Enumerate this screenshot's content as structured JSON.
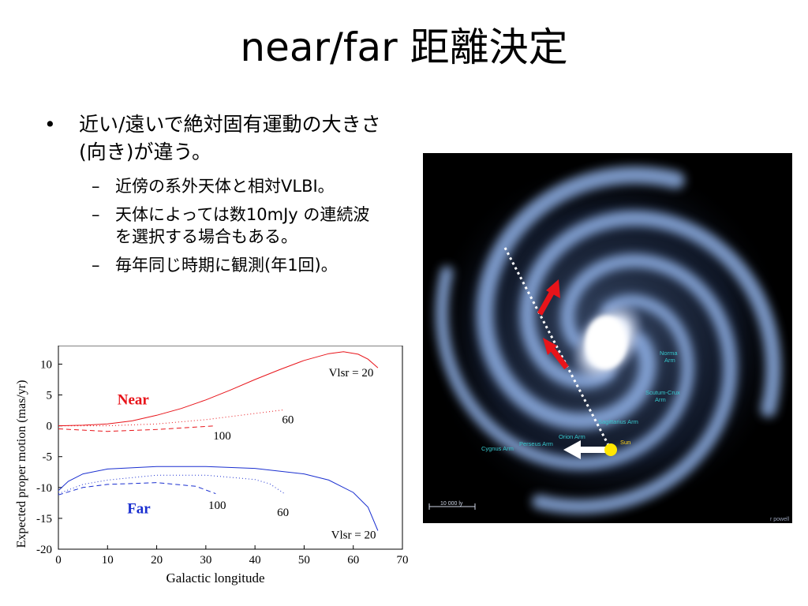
{
  "slide": {
    "title": "near/far 距離決定",
    "bullet_main": "近い/遠いで絶対固有運動の大きさ(向き)が違う。",
    "sub_bullets": [
      "近傍の系外天体と相対VLBI。",
      "天体によっては数10mJy の連続波を選択する場合もある。",
      "毎年同じ時期に観測(年1回)。"
    ],
    "bullet_symbol": "•",
    "dash_symbol": "–"
  },
  "galaxy": {
    "labels": {
      "norma": "Norma Arm",
      "scutum": "Scutum-Crux Arm",
      "sagittarius": "Sagittarius Arm",
      "orion": "Orion Arm",
      "perseus": "Perseus Arm",
      "cygnus": "Cygnus Arm",
      "sun": "Sun",
      "scale": "10 000 ly",
      "credit": "r powell"
    },
    "colors": {
      "arrow_red": "#e8141a",
      "sun": "#ffe600",
      "arm_label": "#37c6cc"
    }
  },
  "chart_data": {
    "type": "line",
    "xlabel": "Galactic longitude",
    "ylabel": "Expected proper motion (mas/yr)",
    "xlim": [
      0,
      70
    ],
    "ylim": [
      -20,
      13
    ],
    "xticks": [
      0,
      10,
      20,
      30,
      40,
      50,
      60,
      70
    ],
    "yticks": [
      10,
      5,
      0,
      -5,
      -10,
      -15,
      -20
    ],
    "group_labels": {
      "near": "Near",
      "far": "Far"
    },
    "group_colors": {
      "near": "#e8141a",
      "far": "#1a2fd0"
    },
    "series": [
      {
        "group": "near",
        "style": "solid",
        "x": [
          0,
          5,
          10,
          15,
          20,
          25,
          30,
          35,
          40,
          45,
          50,
          55,
          58,
          61,
          63,
          65
        ],
        "y": [
          0.0,
          0.1,
          0.3,
          0.8,
          1.7,
          2.8,
          4.2,
          5.8,
          7.5,
          9.1,
          10.6,
          11.7,
          12.0,
          11.6,
          10.8,
          9.4
        ]
      },
      {
        "group": "near",
        "style": "dotted",
        "x": [
          0,
          10,
          20,
          30,
          40,
          46
        ],
        "y": [
          0.0,
          0.0,
          0.3,
          1.0,
          2.0,
          2.6
        ]
      },
      {
        "group": "near",
        "style": "dashed",
        "x": [
          0,
          10,
          20,
          26,
          32
        ],
        "y": [
          -0.5,
          -0.9,
          -0.6,
          -0.3,
          0.0
        ]
      },
      {
        "group": "far",
        "style": "solid",
        "x": [
          0,
          2,
          5,
          10,
          20,
          30,
          40,
          50,
          55,
          60,
          63,
          65
        ],
        "y": [
          -10.5,
          -9.0,
          -7.8,
          -7.0,
          -6.6,
          -6.6,
          -6.9,
          -7.8,
          -8.8,
          -10.8,
          -13.2,
          -17.0
        ]
      },
      {
        "group": "far",
        "style": "dotted",
        "x": [
          0,
          5,
          10,
          20,
          30,
          40,
          43,
          46
        ],
        "y": [
          -11.0,
          -9.5,
          -8.8,
          -8.0,
          -8.0,
          -8.7,
          -9.4,
          -11.0
        ]
      },
      {
        "group": "far",
        "style": "dashed",
        "x": [
          0,
          5,
          10,
          20,
          28,
          32
        ],
        "y": [
          -11.2,
          -10.0,
          -9.5,
          -9.2,
          -9.8,
          -11.0
        ]
      }
    ],
    "annotations": [
      {
        "text": "Vlsr = 20",
        "x": 55,
        "y": 8,
        "color": "#000"
      },
      {
        "text": "60",
        "x": 45.5,
        "y": 0.4,
        "color": "#000"
      },
      {
        "text": "100",
        "x": 31.5,
        "y": -2.2,
        "color": "#000"
      },
      {
        "text": "100",
        "x": 30.5,
        "y": -13.5,
        "color": "#000"
      },
      {
        "text": "60",
        "x": 44.5,
        "y": -14.6,
        "color": "#000"
      },
      {
        "text": "Vlsr = 20",
        "x": 55.5,
        "y": -18.3,
        "color": "#000"
      }
    ]
  }
}
